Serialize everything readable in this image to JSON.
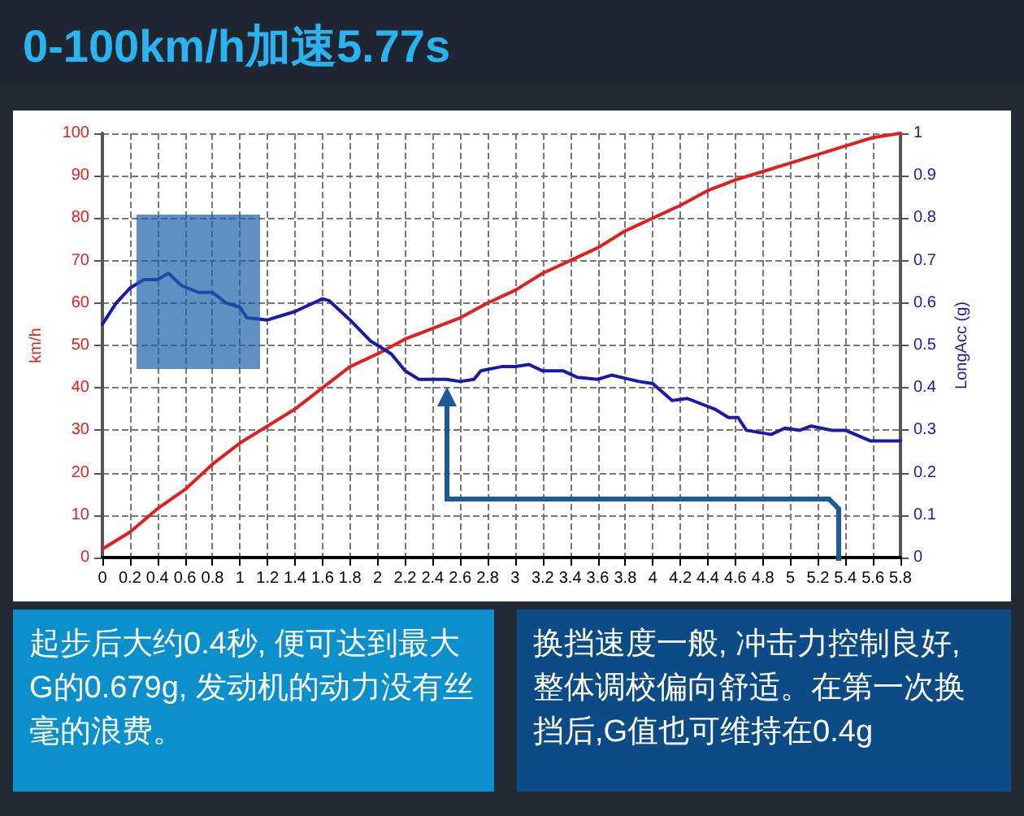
{
  "chart_data": {
    "type": "line",
    "title": "0-100km/h加速5.77s",
    "ylabel": "km/h",
    "y2label": "LongAcc (g)",
    "xlim": [
      0,
      5.8
    ],
    "xticks": [
      0,
      0.2,
      0.4,
      0.6,
      0.8,
      1,
      1.2,
      1.4,
      1.6,
      1.8,
      2,
      2.2,
      2.4,
      2.6,
      2.8,
      3,
      3.2,
      3.4,
      3.6,
      3.8,
      4,
      4.2,
      4.4,
      4.6,
      4.8,
      5,
      5.2,
      5.4,
      5.6,
      5.8
    ],
    "ylim": [
      0,
      100
    ],
    "yticks": [
      0,
      10,
      20,
      30,
      40,
      50,
      60,
      70,
      80,
      90,
      100
    ],
    "y2lim": [
      0,
      1
    ],
    "y2ticks": [
      0,
      0.1,
      0.2,
      0.3,
      0.4,
      0.5,
      0.6,
      0.7,
      0.8,
      0.9,
      1
    ],
    "grid": true,
    "marker": "none",
    "line_style": "solid",
    "series": [
      {
        "color": "#e02020",
        "x": [
          0,
          0.2,
          0.4,
          0.6,
          0.8,
          1,
          1.2,
          1.4,
          1.6,
          1.8,
          2,
          2.2,
          2.4,
          2.6,
          2.8,
          3,
          3.2,
          3.4,
          3.6,
          3.8,
          4,
          4.2,
          4.4,
          4.6,
          4.8,
          5,
          5.2,
          5.4,
          5.6,
          5.8
        ],
        "values": [
          2,
          6,
          11.5,
          16,
          22,
          27,
          31,
          35,
          40,
          45,
          48,
          51.5,
          54,
          56.5,
          60,
          63,
          67,
          70,
          73,
          77,
          80,
          83,
          86.5,
          89,
          91,
          93,
          95,
          97,
          99,
          100
        ]
      },
      {
        "color": "#1a1aa8",
        "axis": "y2",
        "x": [
          0,
          0.1,
          0.2,
          0.3,
          0.4,
          0.48,
          0.58,
          0.7,
          0.8,
          0.9,
          1,
          1.05,
          1.2,
          1.4,
          1.6,
          1.65,
          1.8,
          1.95,
          2.1,
          2.2,
          2.3,
          2.5,
          2.6,
          2.7,
          2.75,
          2.9,
          3,
          3.1,
          3.2,
          3.35,
          3.45,
          3.6,
          3.7,
          3.9,
          4.0,
          4.14,
          4.25,
          4.45,
          4.55,
          4.62,
          4.68,
          4.86,
          4.96,
          5.07,
          5.15,
          5.3,
          5.4,
          5.58,
          5.8
        ],
        "values": [
          0.55,
          0.6,
          0.635,
          0.655,
          0.655,
          0.67,
          0.64,
          0.625,
          0.625,
          0.6,
          0.59,
          0.565,
          0.56,
          0.58,
          0.61,
          0.605,
          0.56,
          0.51,
          0.48,
          0.44,
          0.42,
          0.42,
          0.415,
          0.42,
          0.44,
          0.45,
          0.45,
          0.455,
          0.44,
          0.44,
          0.425,
          0.42,
          0.43,
          0.415,
          0.41,
          0.37,
          0.375,
          0.35,
          0.33,
          0.33,
          0.3,
          0.29,
          0.305,
          0.3,
          0.31,
          0.3,
          0.3,
          0.275,
          0.275
        ]
      }
    ],
    "annotations": [
      "起步后大约0.4秒, 便可达到最大G的0.679g, 发动机的动力没有丝毫的浪费。",
      "换挡速度一般, 冲击力控制良好, 整体调校偏向舒适。在第一次换挡后,G值也可维持在0.4g"
    ]
  }
}
